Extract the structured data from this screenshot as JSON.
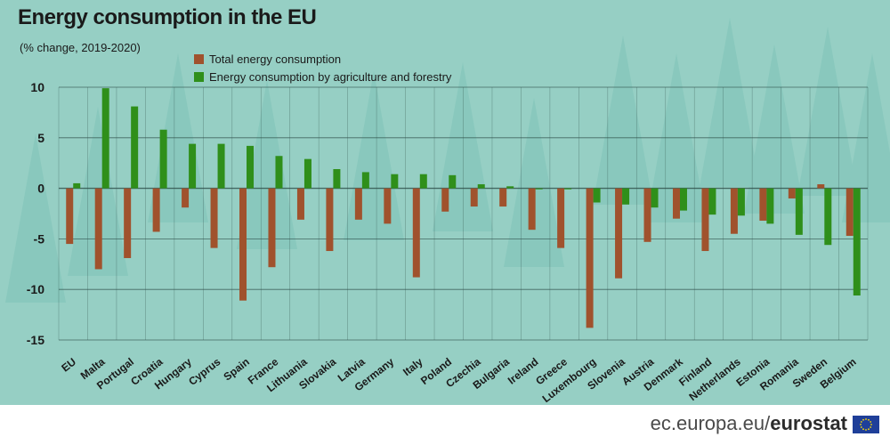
{
  "title": "Energy consumption in the EU",
  "subtitle": "(% change, 2019-2020)",
  "footer": {
    "site": "ec.europa.eu/",
    "brand": "eurostat"
  },
  "colors": {
    "background": "#96cfc4",
    "total": "#a0522d",
    "agri": "#2f8f1a",
    "grid": "#2f4f4a",
    "tree": "#7fc3b8"
  },
  "chart_data": {
    "type": "bar",
    "title": "Energy consumption in the EU",
    "subtitle": "(% change, 2019-2020)",
    "xlabel": "",
    "ylabel": "",
    "ylim": [
      -15,
      10
    ],
    "yticks": [
      10,
      5,
      0,
      -5,
      -10,
      -15
    ],
    "legend_position": "top-left",
    "categories": [
      "EU",
      "Malta",
      "Portugal",
      "Croatia",
      "Hungary",
      "Cyprus",
      "Spain",
      "France",
      "Lithuania",
      "Slovakia",
      "Latvia",
      "Germany",
      "Italy",
      "Poland",
      "Czechia",
      "Bulgaria",
      "Ireland",
      "Greece",
      "Luxembourg",
      "Slovenia",
      "Austria",
      "Denmark",
      "Finland",
      "Netherlands",
      "Estonia",
      "Romania",
      "Sweden",
      "Belgium"
    ],
    "series": [
      {
        "name": "Total energy consumption",
        "values": [
          -5.5,
          -8.0,
          -6.9,
          -4.3,
          -1.9,
          -5.9,
          -11.1,
          -7.8,
          -3.1,
          -6.2,
          -3.1,
          -3.5,
          -8.8,
          -2.3,
          -1.8,
          -1.8,
          -4.1,
          -5.9,
          -13.8,
          -8.9,
          -5.3,
          -3.0,
          -6.2,
          -4.5,
          -3.2,
          -1.0,
          0.4,
          -4.7
        ]
      },
      {
        "name": "Energy consumption by agriculture and forestry",
        "values": [
          0.5,
          9.9,
          8.1,
          5.8,
          4.4,
          4.4,
          4.2,
          3.2,
          2.9,
          1.9,
          1.6,
          1.4,
          1.4,
          1.3,
          0.4,
          0.2,
          -0.1,
          -0.1,
          -1.4,
          -1.6,
          -1.9,
          -2.2,
          -2.6,
          -2.7,
          -3.5,
          -4.6,
          -5.6,
          -10.6
        ]
      }
    ]
  }
}
